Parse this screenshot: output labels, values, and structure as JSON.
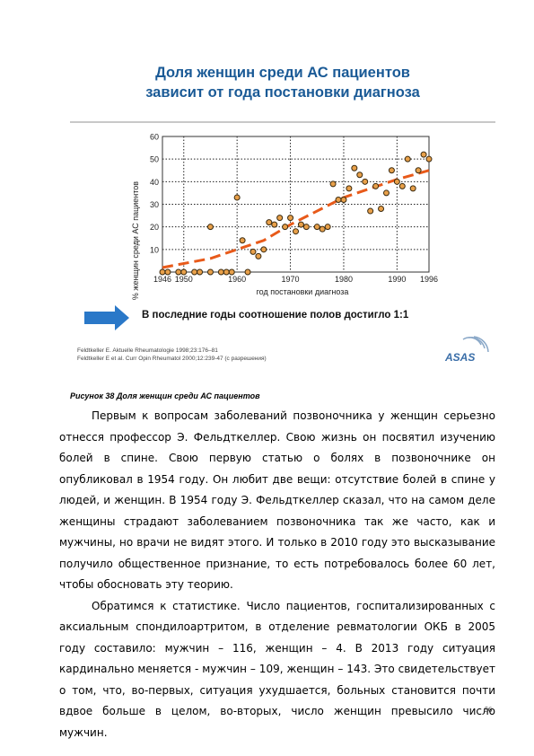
{
  "slide": {
    "title_line1": "Доля женщин среди АС пациентов",
    "title_line2": "зависит от года постановки диагноза",
    "banner_text": "В последние годы соотношение полов достигло 1:1",
    "ref1": "Feldtkeller E. Aktuelle Rheumatologie 1998;23:176–81",
    "ref2": "Feldtkeller E et al. Curr Opin Rheumatol 2000;12:239-47 (с разрешения)",
    "logo_text": "ASAS",
    "title_color": "#1a5a96",
    "arrow_color": "#2a78c8"
  },
  "chart_data": {
    "type": "scatter",
    "xlabel": "год постановки диагноза",
    "ylabel": "% женщин среди АС пациентов",
    "xlim": [
      1946,
      1996
    ],
    "ylim": [
      0,
      60
    ],
    "x_ticks": [
      1946,
      1950,
      1960,
      1970,
      1980,
      1990,
      1996
    ],
    "y_ticks": [
      10,
      20,
      30,
      40,
      50,
      60
    ],
    "grid": "horizontal dotted",
    "point_color": "#e8a04a",
    "trend_color": "#e85a1a",
    "points": [
      {
        "x": 1946,
        "y": 0
      },
      {
        "x": 1947,
        "y": 0
      },
      {
        "x": 1949,
        "y": 0
      },
      {
        "x": 1950,
        "y": 0
      },
      {
        "x": 1952,
        "y": 0
      },
      {
        "x": 1953,
        "y": 0
      },
      {
        "x": 1955,
        "y": 20
      },
      {
        "x": 1955,
        "y": 0
      },
      {
        "x": 1957,
        "y": 0
      },
      {
        "x": 1958,
        "y": 0
      },
      {
        "x": 1959,
        "y": 0
      },
      {
        "x": 1960,
        "y": 33
      },
      {
        "x": 1961,
        "y": 14
      },
      {
        "x": 1962,
        "y": 0
      },
      {
        "x": 1963,
        "y": 9
      },
      {
        "x": 1964,
        "y": 7
      },
      {
        "x": 1965,
        "y": 10
      },
      {
        "x": 1966,
        "y": 22
      },
      {
        "x": 1967,
        "y": 21
      },
      {
        "x": 1968,
        "y": 24
      },
      {
        "x": 1969,
        "y": 20
      },
      {
        "x": 1970,
        "y": 24
      },
      {
        "x": 1971,
        "y": 18
      },
      {
        "x": 1972,
        "y": 21
      },
      {
        "x": 1973,
        "y": 20
      },
      {
        "x": 1975,
        "y": 20
      },
      {
        "x": 1976,
        "y": 19
      },
      {
        "x": 1977,
        "y": 20
      },
      {
        "x": 1978,
        "y": 39
      },
      {
        "x": 1979,
        "y": 32
      },
      {
        "x": 1980,
        "y": 32
      },
      {
        "x": 1981,
        "y": 37
      },
      {
        "x": 1982,
        "y": 46
      },
      {
        "x": 1983,
        "y": 43
      },
      {
        "x": 1984,
        "y": 40
      },
      {
        "x": 1985,
        "y": 27
      },
      {
        "x": 1986,
        "y": 38
      },
      {
        "x": 1987,
        "y": 28
      },
      {
        "x": 1988,
        "y": 35
      },
      {
        "x": 1989,
        "y": 45
      },
      {
        "x": 1990,
        "y": 40
      },
      {
        "x": 1991,
        "y": 38
      },
      {
        "x": 1992,
        "y": 50
      },
      {
        "x": 1993,
        "y": 37
      },
      {
        "x": 1994,
        "y": 45
      },
      {
        "x": 1995,
        "y": 52
      },
      {
        "x": 1996,
        "y": 50
      }
    ],
    "trend": [
      {
        "x": 1946,
        "y": 2
      },
      {
        "x": 1955,
        "y": 6
      },
      {
        "x": 1960,
        "y": 10
      },
      {
        "x": 1965,
        "y": 14
      },
      {
        "x": 1970,
        "y": 21
      },
      {
        "x": 1975,
        "y": 27
      },
      {
        "x": 1980,
        "y": 33
      },
      {
        "x": 1985,
        "y": 37
      },
      {
        "x": 1990,
        "y": 41
      },
      {
        "x": 1996,
        "y": 45
      }
    ]
  },
  "caption": "Рисунок 38 Доля женщин среди АС пациентов",
  "paragraphs": [
    "Первым к вопросам заболеваний позвоночника у женщин серьезно отнесся профессор Э. Фельдткеллер. Свою жизнь он посвятил изучению болей в спине. Свою первую статью о болях в позвоночнике он опубликовал в 1954 году. Он любит две вещи: отсутствие болей в спине у людей, и женщин. В 1954 году Э. Фельдткеллер сказал, что на самом деле женщины страдают заболеванием позвоночника так же часто, как и мужчины, но врачи не видят этого. И только в 2010 году это высказывание получило общественное признание, то есть потребовалось более 60 лет, чтобы обосновать эту теорию.",
    "Обратимся к статистике. Число пациентов, госпитализированных с аксиальным спондилоартритом, в отделение ревматологии ОКБ в 2005 году составило: мужчин – 116, женщин – 4. В 2013 году ситуация кардинально меняется - мужчин – 109, женщин – 143. Это свидетельствует о том, что, во-первых, ситуация ухудшается, больных становится почти вдвое больше в целом, во-вторых, число женщин превысило число мужчин."
  ],
  "page_number": "56"
}
